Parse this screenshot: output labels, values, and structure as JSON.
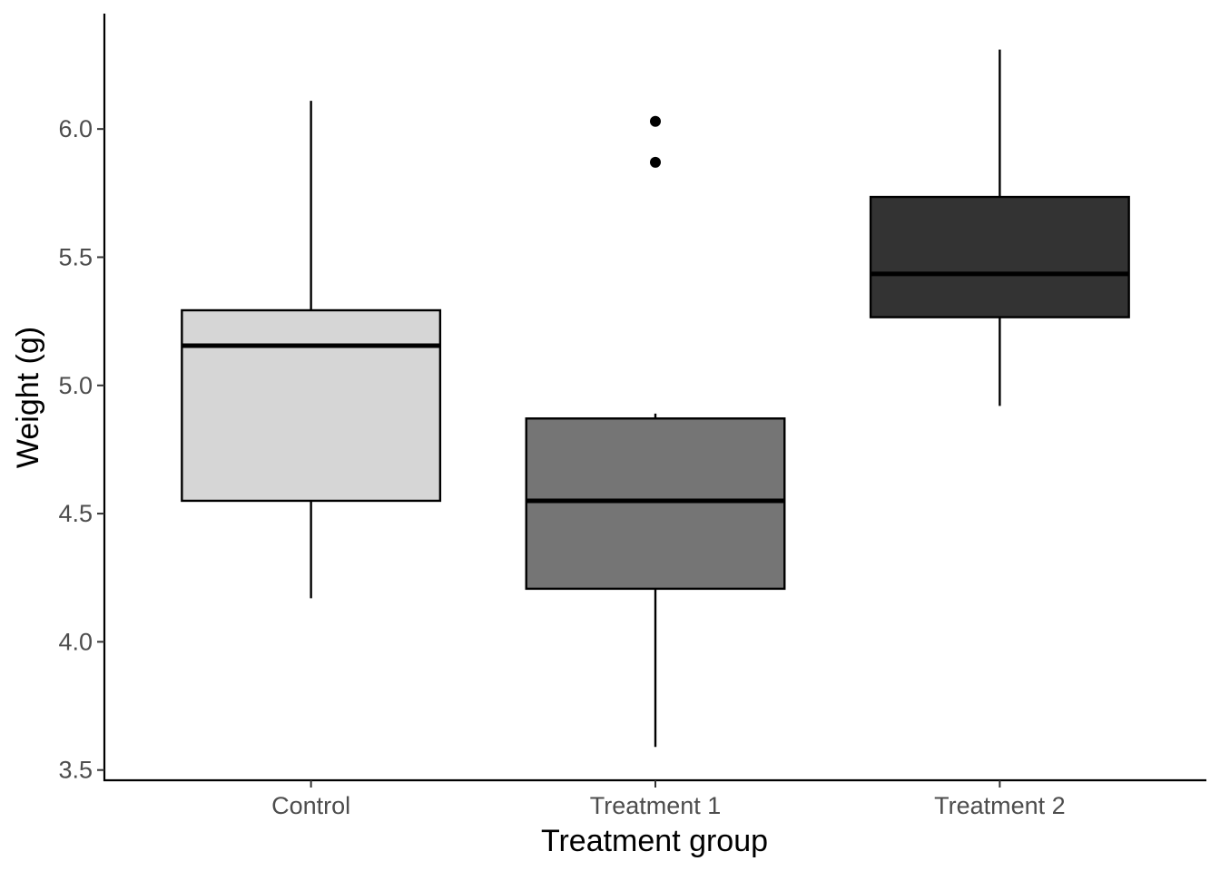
{
  "chart_data": {
    "type": "boxplot",
    "xlabel": "Treatment group",
    "ylabel": "Weight (g)",
    "ylim": [
      3.46,
      6.45
    ],
    "yticks": [
      3.5,
      4.0,
      4.5,
      5.0,
      5.5,
      6.0
    ],
    "ytick_labels": [
      "3.5",
      "4.0",
      "4.5",
      "5.0",
      "5.5",
      "6.0"
    ],
    "grid": false,
    "legend": "none",
    "categories": [
      "Control",
      "Treatment 1",
      "Treatment 2"
    ],
    "boxes": [
      {
        "category": "Control",
        "min": 4.17,
        "q1": 4.55,
        "median": 5.155,
        "q3": 5.293,
        "max": 6.11,
        "outliers": [],
        "fill": "#d6d6d6"
      },
      {
        "category": "Treatment 1",
        "min": 3.59,
        "q1": 4.207,
        "median": 4.55,
        "q3": 4.871,
        "max": 4.89,
        "outliers": [
          5.87,
          6.03
        ],
        "fill": "#757575"
      },
      {
        "category": "Treatment 2",
        "min": 4.92,
        "q1": 5.266,
        "median": 5.435,
        "q3": 5.735,
        "max": 6.31,
        "outliers": [],
        "fill": "#333333"
      }
    ]
  }
}
